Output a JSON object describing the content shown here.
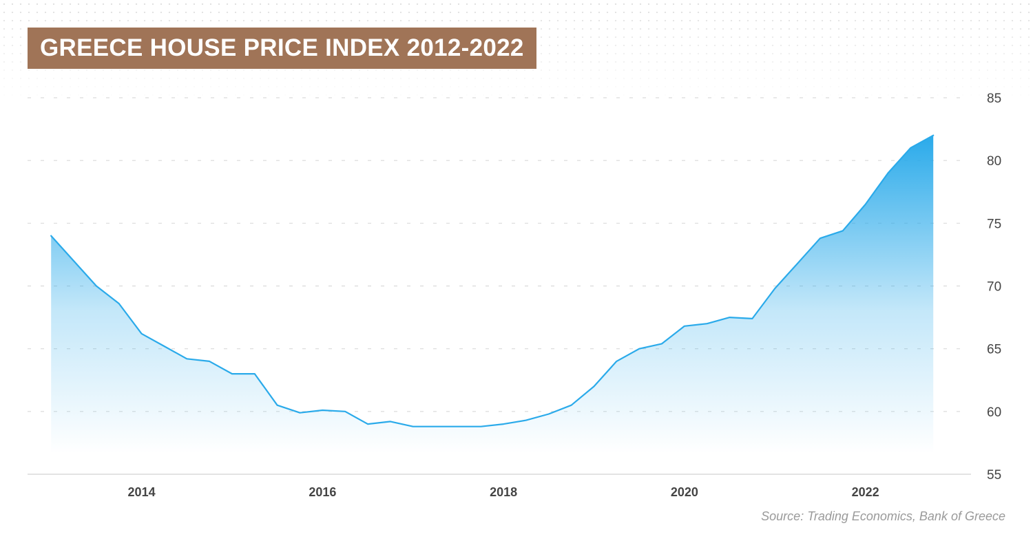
{
  "chart_data": {
    "type": "area",
    "title": "GREECE HOUSE PRICE INDEX 2012-2022",
    "source": "Source: Trading Economics, Bank of Greece",
    "xlabel": "",
    "ylabel": "",
    "x_ticks": [
      "2014",
      "2016",
      "2018",
      "2020",
      "2022"
    ],
    "y_ticks": [
      "85",
      "80",
      "75",
      "70",
      "65",
      "60",
      "55"
    ],
    "ylim": [
      55,
      85
    ],
    "xlim": [
      2012.93,
      2023.0
    ],
    "grid": true,
    "legend": "none",
    "colors": {
      "line": "#2aaaea",
      "fill_top": "#2aaaea",
      "title_bg": "#a07457"
    },
    "series": [
      {
        "x": [
          2013.0,
          2013.25,
          2013.5,
          2013.75,
          2014.0,
          2014.25,
          2014.5,
          2014.75,
          2015.0,
          2015.25,
          2015.5,
          2015.75,
          2016.0,
          2016.25,
          2016.5,
          2016.75,
          2017.0,
          2017.25,
          2017.5,
          2017.75,
          2018.0,
          2018.25,
          2018.5,
          2018.75,
          2019.0,
          2019.25,
          2019.5,
          2019.75,
          2020.0,
          2020.25,
          2020.5,
          2020.75,
          2021.0,
          2021.25,
          2021.5,
          2021.75,
          2022.0,
          2022.25,
          2022.5,
          2022.75
        ],
        "values": [
          74.0,
          72.0,
          70.0,
          68.6,
          66.2,
          65.2,
          64.2,
          64.0,
          63.0,
          63.0,
          60.5,
          59.9,
          60.1,
          60.0,
          59.0,
          59.2,
          58.8,
          58.8,
          58.8,
          58.8,
          59.0,
          59.3,
          59.8,
          60.5,
          62.0,
          64.0,
          65.0,
          65.4,
          66.8,
          67.0,
          67.5,
          67.4,
          69.8,
          71.8,
          73.8,
          74.4,
          76.5,
          79.0,
          81.0,
          82.0
        ]
      }
    ]
  }
}
